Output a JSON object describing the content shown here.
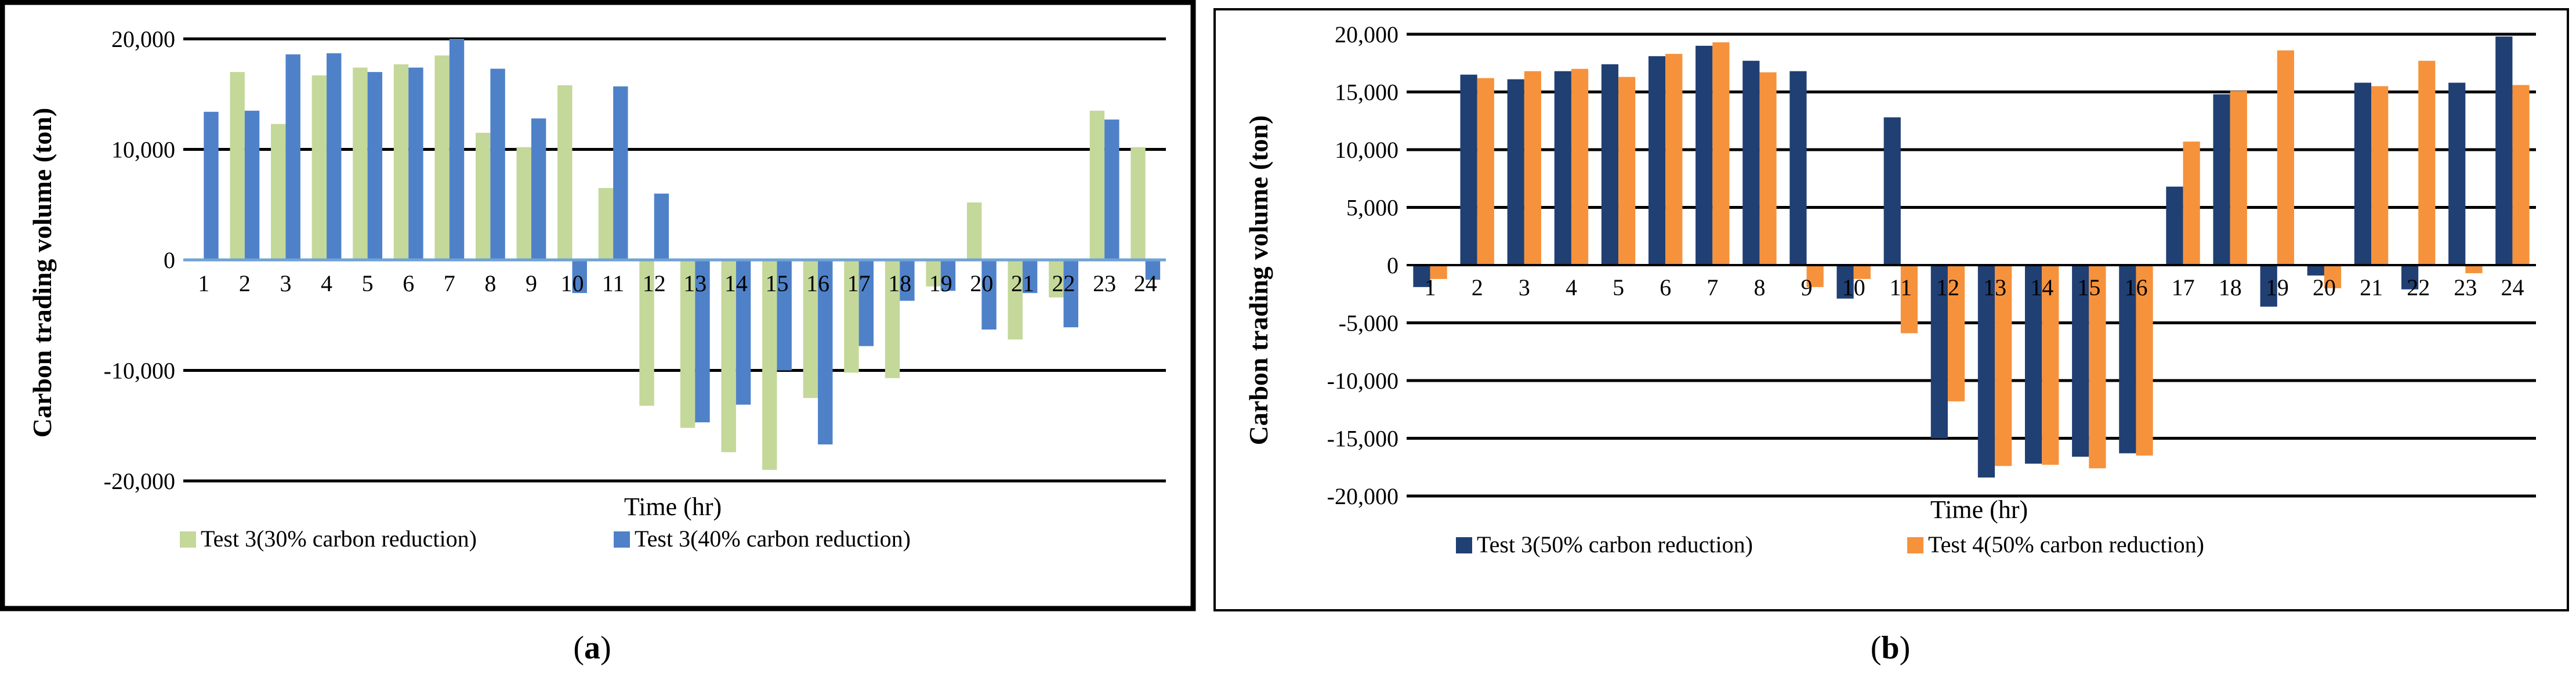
{
  "chart_data": [
    {
      "panel_label": "a",
      "type": "bar",
      "title": "",
      "xlabel": "Time (hr)",
      "ylabel": "Carbon trading volume (ton)",
      "ylim": [
        -20000,
        20000
      ],
      "yticks": [
        -20000,
        -10000,
        0,
        10000,
        20000
      ],
      "ytick_labels": [
        "-20,000",
        "-10,000",
        "0",
        "10,000",
        "20,000"
      ],
      "grid": true,
      "legend_position": "bottom-left",
      "categories": [
        "1",
        "2",
        "3",
        "4",
        "5",
        "6",
        "7",
        "8",
        "9",
        "10",
        "11",
        "12",
        "13",
        "14",
        "15",
        "16",
        "17",
        "18",
        "19",
        "20",
        "21",
        "22",
        "23",
        "24"
      ],
      "series": [
        {
          "name": "Test 3(30% carbon reduction)",
          "color": "#c4d89a",
          "values": [
            0,
            17000,
            12300,
            16700,
            17400,
            17700,
            18500,
            11500,
            10200,
            15800,
            6500,
            -13200,
            -15200,
            -17400,
            -19000,
            -12500,
            -10200,
            -10700,
            -2400,
            5200,
            -7200,
            -3400,
            13500,
            10200
          ]
        },
        {
          "name": "Test 3(40% carbon reduction)",
          "color": "#4f81c9",
          "values": [
            13400,
            13500,
            18600,
            18700,
            17000,
            17400,
            20000,
            17300,
            12800,
            -3000,
            15700,
            6000,
            -14700,
            -13100,
            -10000,
            -16700,
            -7800,
            -3700,
            -2800,
            -6300,
            -3000,
            -6100,
            12700,
            -1800
          ]
        }
      ]
    },
    {
      "panel_label": "b",
      "type": "bar",
      "title": "",
      "xlabel": "Time (hr)",
      "ylabel": "Carbon trading volume (ton)",
      "ylim": [
        -20000,
        20000
      ],
      "yticks": [
        -20000,
        -15000,
        -10000,
        -5000,
        0,
        5000,
        10000,
        15000,
        20000
      ],
      "ytick_labels": [
        "-20,000",
        "-15,000",
        "-10,000",
        "-5,000",
        "0",
        "5,000",
        "10,000",
        "15,000",
        "20,000"
      ],
      "grid": true,
      "legend_position": "bottom-left",
      "categories": [
        "1",
        "2",
        "3",
        "4",
        "5",
        "6",
        "7",
        "8",
        "9",
        "10",
        "11",
        "12",
        "13",
        "14",
        "15",
        "16",
        "17",
        "18",
        "19",
        "20",
        "21",
        "22",
        "23",
        "24"
      ],
      "series": [
        {
          "name": "Test 3(50% carbon reduction)",
          "color": "#203f73",
          "values": [
            -1900,
            16500,
            16100,
            16800,
            17400,
            18100,
            19000,
            17700,
            16800,
            -2900,
            12800,
            -15000,
            -18400,
            -17200,
            -16600,
            -16300,
            6800,
            14800,
            -3600,
            -900,
            15800,
            -2100,
            15800,
            19800
          ]
        },
        {
          "name": "Test 4(50% carbon reduction)",
          "color": "#f6923c",
          "values": [
            -1200,
            16200,
            16800,
            17000,
            16300,
            18300,
            19300,
            16700,
            -1900,
            -1200,
            -5900,
            -11800,
            -17400,
            -17300,
            -17600,
            -16500,
            10700,
            15100,
            18600,
            -2000,
            15500,
            17700,
            -700,
            15600
          ]
        }
      ]
    }
  ]
}
